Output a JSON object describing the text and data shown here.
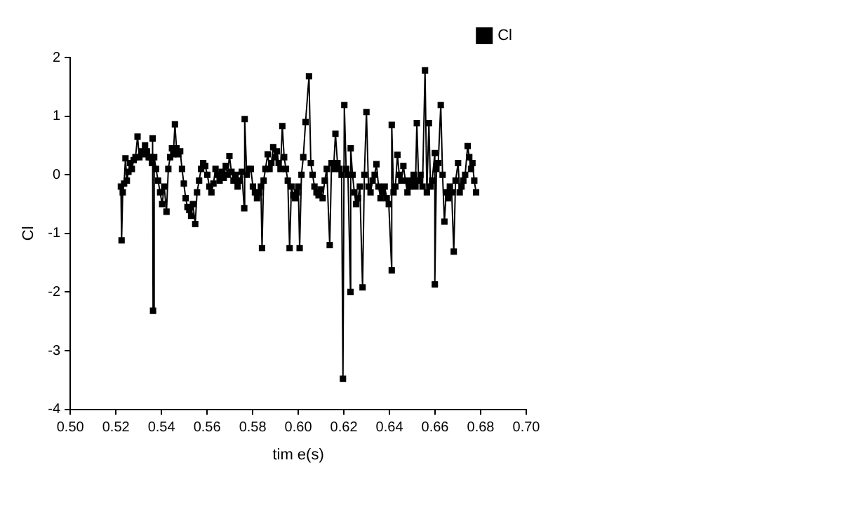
{
  "chart_data": {
    "type": "line",
    "xlabel": "tim e(s)",
    "ylabel": "Cl",
    "xlim": [
      0.5,
      0.7
    ],
    "ylim": [
      -4,
      2
    ],
    "xticks": [
      {
        "value": 0.5,
        "label": "0.50"
      },
      {
        "value": 0.52,
        "label": "0.52"
      },
      {
        "value": 0.54,
        "label": "0.54"
      },
      {
        "value": 0.56,
        "label": "0.56"
      },
      {
        "value": 0.58,
        "label": "0.58"
      },
      {
        "value": 0.6,
        "label": "0.60"
      },
      {
        "value": 0.62,
        "label": "0.62"
      },
      {
        "value": 0.64,
        "label": "0.64"
      },
      {
        "value": 0.66,
        "label": "0.66"
      },
      {
        "value": 0.68,
        "label": "0.68"
      },
      {
        "value": 0.7,
        "label": "0.70"
      }
    ],
    "yticks": [
      -4,
      -3,
      -2,
      -1,
      0,
      1,
      2
    ],
    "grid": false,
    "legend": "top right",
    "marker": "square",
    "line_style": "solid",
    "series": [
      {
        "name": "Cl",
        "color": "#000000",
        "x": [
          0.5222,
          0.5225,
          0.523,
          0.5236,
          0.5242,
          0.5248,
          0.5255,
          0.5262,
          0.527,
          0.5278,
          0.5286,
          0.5295,
          0.5303,
          0.5312,
          0.532,
          0.5328,
          0.5336,
          0.5344,
          0.5352,
          0.5358,
          0.5361,
          0.5363,
          0.5368,
          0.5376,
          0.5385,
          0.5394,
          0.5403,
          0.5412,
          0.5422,
          0.543,
          0.5438,
          0.5446,
          0.5452,
          0.5459,
          0.5466,
          0.5474,
          0.5482,
          0.549,
          0.5498,
          0.5506,
          0.5514,
          0.5522,
          0.553,
          0.5538,
          0.5548,
          0.5556,
          0.5565,
          0.5574,
          0.5583,
          0.5592,
          0.5601,
          0.561,
          0.5619,
          0.5628,
          0.5637,
          0.5646,
          0.5655,
          0.5664,
          0.5673,
          0.5682,
          0.569,
          0.5698,
          0.5707,
          0.5716,
          0.5725,
          0.5734,
          0.5743,
          0.5752,
          0.5763,
          0.5765,
          0.5774,
          0.5783,
          0.5792,
          0.5801,
          0.581,
          0.5819,
          0.5828,
          0.5836,
          0.5841,
          0.5848,
          0.5856,
          0.5866,
          0.5874,
          0.5882,
          0.589,
          0.5898,
          0.5906,
          0.5914,
          0.5922,
          0.593,
          0.5938,
          0.5946,
          0.5954,
          0.5962,
          0.597,
          0.5978,
          0.5986,
          0.5994,
          0.6,
          0.6006,
          0.6014,
          0.6022,
          0.6032,
          0.6047,
          0.6055,
          0.6063,
          0.6071,
          0.608,
          0.6089,
          0.6098,
          0.6107,
          0.6116,
          0.6125,
          0.6138,
          0.6146,
          0.6155,
          0.6163,
          0.6172,
          0.6181,
          0.619,
          0.6196,
          0.6202,
          0.621,
          0.6218,
          0.6229,
          0.623,
          0.6238,
          0.6246,
          0.6254,
          0.6262,
          0.627,
          0.6282,
          0.629,
          0.6299,
          0.6308,
          0.6317,
          0.6326,
          0.6335,
          0.6343,
          0.6352,
          0.6361,
          0.637,
          0.6379,
          0.6388,
          0.6397,
          0.641,
          0.641,
          0.6418,
          0.6426,
          0.6435,
          0.6443,
          0.6452,
          0.6461,
          0.647,
          0.6479,
          0.6488,
          0.6497,
          0.6506,
          0.6514,
          0.652,
          0.6528,
          0.6536,
          0.6545,
          0.6556,
          0.6564,
          0.6573,
          0.658,
          0.6587,
          0.6599,
          0.6599,
          0.6606,
          0.6614,
          0.6625,
          0.6633,
          0.6641,
          0.6649,
          0.6657,
          0.6665,
          0.6673,
          0.6682,
          0.669,
          0.6701,
          0.6708,
          0.6716,
          0.6724,
          0.6732,
          0.6743,
          0.675,
          0.6758,
          0.6764,
          0.6772,
          0.678
        ],
        "values": [
          -0.2,
          -1.12,
          -0.3,
          -0.15,
          0.28,
          -0.1,
          0.05,
          0.2,
          0.1,
          0.25,
          0.3,
          0.65,
          0.3,
          0.4,
          0.35,
          0.5,
          0.4,
          0.3,
          0.3,
          0.2,
          0.62,
          -2.32,
          0.3,
          0.1,
          -0.1,
          -0.3,
          -0.5,
          -0.2,
          -0.63,
          0.1,
          0.3,
          0.45,
          0.35,
          0.86,
          0.45,
          0.35,
          0.4,
          0.1,
          -0.15,
          -0.4,
          -0.55,
          -0.6,
          -0.7,
          -0.5,
          -0.84,
          -0.3,
          -0.1,
          0.1,
          0.2,
          0.15,
          0.0,
          -0.2,
          -0.3,
          -0.15,
          0.1,
          0.0,
          -0.1,
          0.05,
          -0.05,
          0.15,
          0.0,
          0.32,
          0.05,
          -0.1,
          0.0,
          -0.2,
          -0.1,
          0.05,
          -0.57,
          0.95,
          0.0,
          0.1,
          0.1,
          -0.2,
          -0.3,
          -0.4,
          -0.3,
          -0.2,
          -1.25,
          -0.1,
          0.1,
          0.35,
          0.1,
          0.2,
          0.47,
          0.3,
          0.4,
          0.2,
          0.1,
          0.83,
          0.3,
          0.1,
          -0.1,
          -1.25,
          -0.2,
          -0.35,
          -0.4,
          -0.3,
          -0.2,
          -1.25,
          0.0,
          0.3,
          0.9,
          1.68,
          0.2,
          0.0,
          -0.2,
          -0.3,
          -0.35,
          -0.25,
          -0.4,
          -0.1,
          0.1,
          -1.2,
          0.2,
          0.1,
          0.7,
          0.2,
          0.1,
          0.0,
          -3.48,
          1.19,
          0.1,
          0.0,
          -2.0,
          0.45,
          0.0,
          -0.3,
          -0.5,
          -0.4,
          -0.2,
          -1.92,
          0.0,
          1.07,
          -0.2,
          -0.3,
          -0.1,
          0.0,
          0.18,
          -0.2,
          -0.4,
          -0.3,
          -0.2,
          -0.4,
          -0.5,
          -1.63,
          0.85,
          -0.3,
          -0.2,
          0.34,
          0.0,
          -0.1,
          0.15,
          -0.1,
          -0.3,
          -0.2,
          -0.1,
          0.0,
          -0.2,
          0.88,
          -0.1,
          0.0,
          -0.2,
          1.78,
          -0.3,
          0.88,
          -0.2,
          -0.1,
          0.37,
          -1.87,
          0.1,
          0.2,
          1.19,
          0.0,
          -0.8,
          -0.3,
          -0.4,
          -0.2,
          -0.3,
          -1.31,
          -0.1,
          0.2,
          -0.3,
          -0.2,
          -0.1,
          0.0,
          0.49,
          0.3,
          0.1,
          0.2,
          -0.1,
          -0.3
        ]
      }
    ]
  }
}
